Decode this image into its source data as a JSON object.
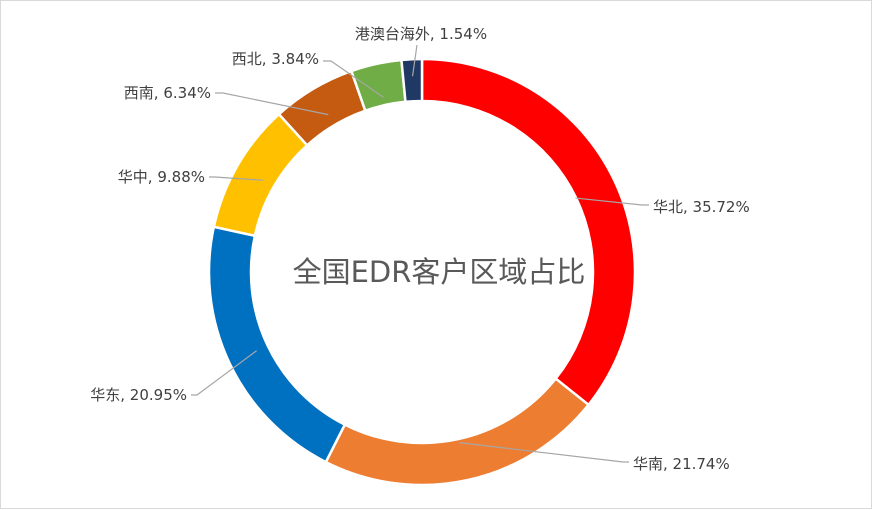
{
  "chart_data": {
    "type": "pie",
    "title": "全国EDR客户区域占比",
    "hole": true,
    "slices": [
      {
        "label": "华北",
        "value": 35.72,
        "display": "35.72%",
        "color": "#ff0000"
      },
      {
        "label": "华南",
        "value": 21.74,
        "display": "21.74%",
        "color": "#ed7d31"
      },
      {
        "label": "华东",
        "value": 20.95,
        "display": "20.95%",
        "color": "#0070c0"
      },
      {
        "label": "华中",
        "value": 9.88,
        "display": "9.88%",
        "color": "#ffc000"
      },
      {
        "label": "西南",
        "value": 6.34,
        "display": "6.34%",
        "color": "#c55a11"
      },
      {
        "label": "西北",
        "value": 3.84,
        "display": "3.84%",
        "color": "#70ad47"
      },
      {
        "label": "港澳台海外",
        "value": 1.54,
        "display": "1.54%",
        "color": "#1f3864"
      }
    ]
  }
}
